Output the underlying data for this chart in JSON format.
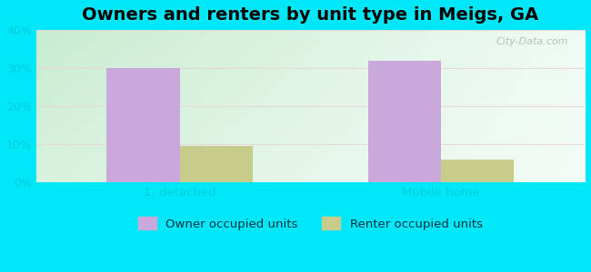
{
  "title": "Owners and renters by unit type in Meigs, GA",
  "categories": [
    "1, detached",
    "Mobile home"
  ],
  "owner_values": [
    30.0,
    32.0
  ],
  "renter_values": [
    9.5,
    6.0
  ],
  "owner_color": "#c9a8dc",
  "renter_color": "#c8cc8a",
  "ylim": [
    0,
    40
  ],
  "yticks": [
    0,
    10,
    20,
    30,
    40
  ],
  "background_outer": "#00e8f8",
  "watermark": "City-Data.com",
  "legend_owner": "Owner occupied units",
  "legend_renter": "Renter occupied units",
  "title_fontsize": 14,
  "bar_width": 0.28,
  "tick_color": "#00ccdd",
  "grid_color": "#ddcccc",
  "bg_left_top": "#c8ecd0",
  "bg_right_bottom": "#f0faf8"
}
